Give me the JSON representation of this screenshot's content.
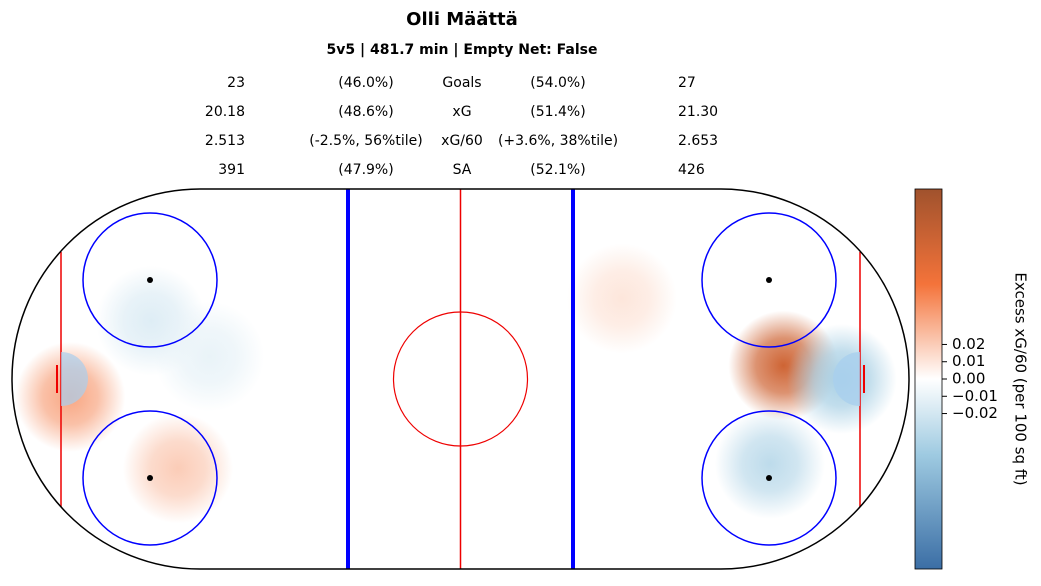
{
  "chart_data": {
    "type": "heatmap",
    "title": "Olli Määttä",
    "subtitle": "5v5 | 481.7 min | Empty Net: False",
    "stats": [
      [
        "23",
        "(46.0%)",
        "Goals",
        "(54.0%)",
        "27"
      ],
      [
        "20.18",
        "(48.6%)",
        "xG",
        "(51.4%)",
        "21.30"
      ],
      [
        "2.513",
        "(-2.5%, 56%tile)",
        "xG/60",
        "(+3.6%, 38%tile)",
        "2.653"
      ],
      [
        "391",
        "(47.9%)",
        "SA",
        "(52.1%)",
        "426"
      ]
    ],
    "x": [
      72,
      69,
      85,
      -87,
      -63,
      -69,
      -56,
      36
    ],
    "y": [
      3,
      -19,
      0,
      -4,
      -20,
      13,
      5,
      18
    ],
    "values": [
      0.08,
      -0.03,
      -0.04,
      0.035,
      0.02,
      -0.015,
      -0.01,
      0.01
    ],
    "xlim": [
      -100,
      100
    ],
    "ylim": [
      -42.5,
      42.5
    ],
    "colorbar_label": "Excess xG/60 (per 100 sq ft)",
    "clim": [
      -0.11,
      0.11
    ],
    "cticks": [
      {
        "value": 0.02,
        "label": "0.02"
      },
      {
        "value": 0.01,
        "label": "0.01"
      },
      {
        "value": 0,
        "label": "0.00"
      },
      {
        "value": -0.01,
        "label": "−0.01"
      },
      {
        "value": -0.02,
        "label": "−0.02"
      }
    ]
  }
}
